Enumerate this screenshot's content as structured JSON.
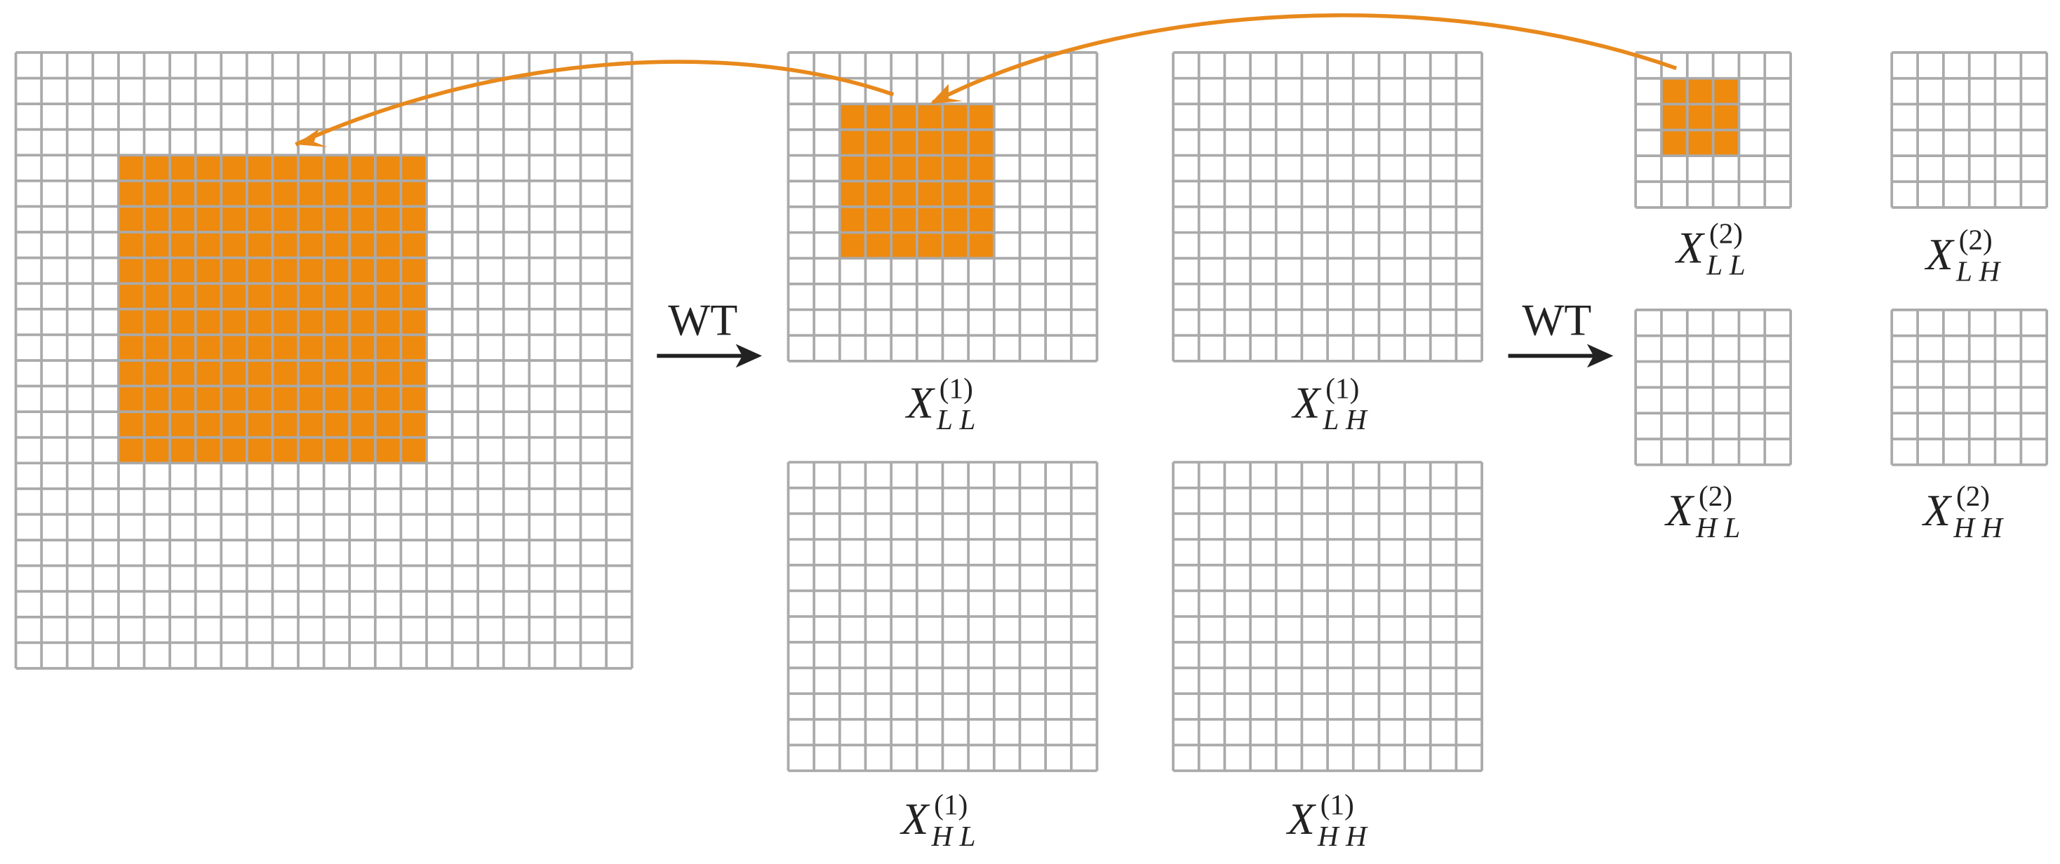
{
  "operators": [
    "WT",
    "WT"
  ],
  "labels": [
    {
      "symbol": "X",
      "superscript": "(1)",
      "subscript": "L L"
    },
    {
      "symbol": "X",
      "superscript": "(1)",
      "subscript": "L H"
    },
    {
      "symbol": "X",
      "superscript": "(1)",
      "subscript": "H L"
    },
    {
      "symbol": "X",
      "superscript": "(1)",
      "subscript": "H H"
    },
    {
      "symbol": "X",
      "superscript": "(2)",
      "subscript": "L L"
    },
    {
      "symbol": "X",
      "superscript": "(2)",
      "subscript": "L H"
    },
    {
      "symbol": "X",
      "superscript": "(2)",
      "subscript": "H L"
    },
    {
      "symbol": "X",
      "superscript": "(2)",
      "subscript": "H H"
    }
  ]
}
